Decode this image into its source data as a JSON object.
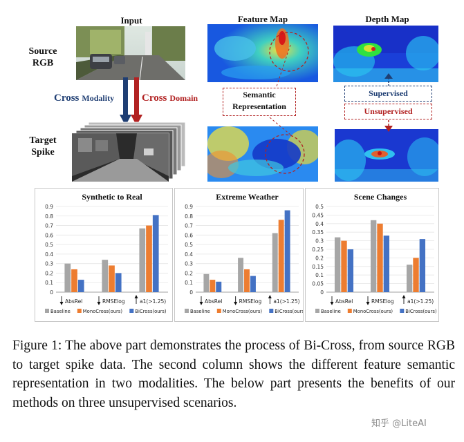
{
  "headers": {
    "input": "Input",
    "feature_map": "Feature Map",
    "depth_map": "Depth Map"
  },
  "row_labels": {
    "source_line1": "Source",
    "source_line2": "RGB",
    "target_line1": "Target",
    "target_line2": "Spike"
  },
  "arrows": {
    "cross_modality_word": "Cross",
    "cross_modality_sub": "Modality",
    "cross_domain_word": "Cross",
    "cross_domain_sub": "Domain"
  },
  "semantic_box": {
    "line1": "Semantic",
    "line2": "Representation"
  },
  "supervised_label": "Supervised",
  "unsupervised_label": "Unsupervised",
  "colors": {
    "blue_accent": "#1f3e73",
    "red_accent": "#b22222",
    "baseline": "#a6a6a6",
    "monocross": "#ed7d31",
    "bicross": "#4472c4"
  },
  "legend": {
    "baseline": "Baseline",
    "monocross": "MonoCross(ours)",
    "bicross": "BiCross(ours)"
  },
  "chart_data": [
    {
      "type": "bar",
      "title": "Synthetic to Real",
      "categories": [
        "AbsRel",
        "RMSElog",
        "a1(>1.25)"
      ],
      "category_arrows": [
        "down",
        "down",
        "up"
      ],
      "series": [
        {
          "name": "Baseline",
          "values": [
            0.3,
            0.34,
            0.67
          ]
        },
        {
          "name": "MonoCross(ours)",
          "values": [
            0.24,
            0.28,
            0.7
          ]
        },
        {
          "name": "BiCross(ours)",
          "values": [
            0.13,
            0.2,
            0.81
          ]
        }
      ],
      "yticks": [
        "0",
        "0.1",
        "0.2",
        "0.3",
        "0.4",
        "0.5",
        "0.6",
        "0.7",
        "0.8",
        "0.9"
      ],
      "ylim": [
        0,
        0.9
      ]
    },
    {
      "type": "bar",
      "title": "Extreme Weather",
      "categories": [
        "AbsRel",
        "RMSElog",
        "a1(>1.25)"
      ],
      "category_arrows": [
        "down",
        "down",
        "up"
      ],
      "series": [
        {
          "name": "Baseline",
          "values": [
            0.19,
            0.36,
            0.62
          ]
        },
        {
          "name": "MonoCross(ours)",
          "values": [
            0.13,
            0.24,
            0.76
          ]
        },
        {
          "name": "BiCross(ours)",
          "values": [
            0.11,
            0.17,
            0.86
          ]
        }
      ],
      "yticks": [
        "0",
        "0.1",
        "0.2",
        "0.3",
        "0.4",
        "0.5",
        "0.6",
        "0.7",
        "0.8",
        "0.9"
      ],
      "ylim": [
        0,
        0.9
      ]
    },
    {
      "type": "bar",
      "title": "Scene Changes",
      "categories": [
        "AbsRel",
        "RMSElog",
        "a1(>1.25)"
      ],
      "category_arrows": [
        "down",
        "down",
        "up"
      ],
      "series": [
        {
          "name": "Baseline",
          "values": [
            0.32,
            0.42,
            0.16
          ]
        },
        {
          "name": "MonoCross(ours)",
          "values": [
            0.3,
            0.4,
            0.2
          ]
        },
        {
          "name": "BiCross(ours)",
          "values": [
            0.25,
            0.33,
            0.31
          ]
        }
      ],
      "yticks": [
        "0",
        "0.05",
        "0.1",
        "0.15",
        "0.2",
        "0.25",
        "0.3",
        "0.35",
        "0.4",
        "0.45",
        "0.5"
      ],
      "ylim": [
        0,
        0.5
      ]
    }
  ],
  "caption": "Figure 1: The above part demonstrates the process of Bi-Cross, from source RGB to target spike data. The second column shows the different feature semantic representation in two modalities. The below part presents the benefits of our methods on three unsupervised scenarios.",
  "watermark": "知乎 @LiteAI"
}
